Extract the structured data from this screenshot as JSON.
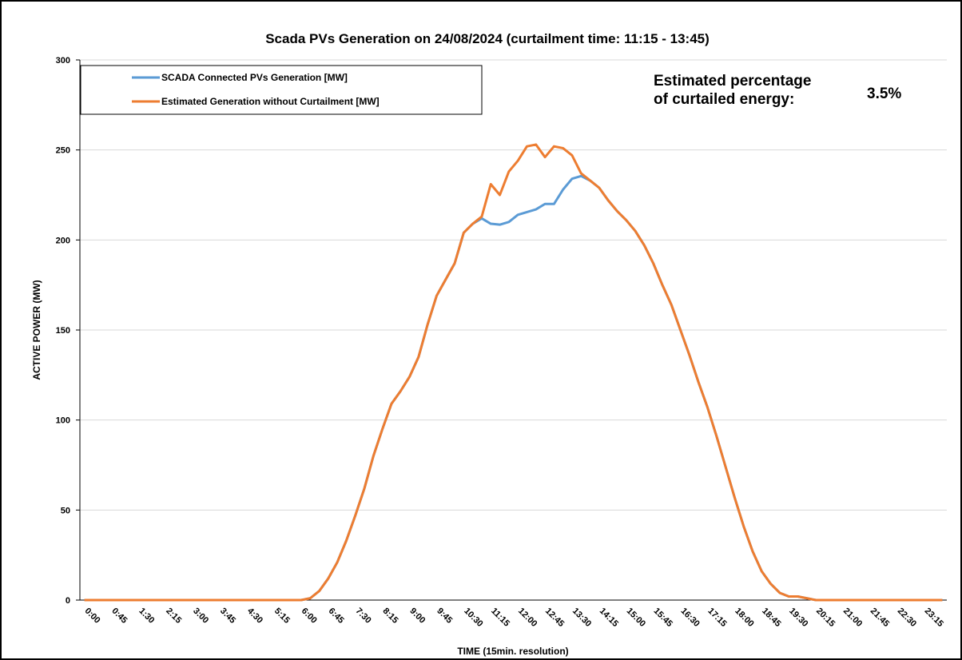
{
  "chart_data": {
    "type": "line",
    "title": "Scada PVs Generation on 24/08/2024 (curtailment time: 11:15 - 13:45)",
    "xlabel": "TIME (15min. resolution)",
    "ylabel": "ACTIVE POWER (MW)",
    "annotation": {
      "text": [
        "Estimated percentage",
        "of curtailed energy:"
      ],
      "value": "3.5%"
    },
    "categories": [
      "0:00",
      null,
      null,
      "0:45",
      null,
      null,
      "1:30",
      null,
      null,
      "2:15",
      null,
      null,
      "3:00",
      null,
      null,
      "3:45",
      null,
      null,
      "4:30",
      null,
      null,
      "5:15",
      null,
      null,
      "6:00",
      null,
      null,
      "6:45",
      null,
      null,
      "7:30",
      null,
      null,
      "8:15",
      null,
      null,
      "9:00",
      null,
      null,
      "9:45",
      null,
      null,
      "10:30",
      null,
      null,
      "11:15",
      null,
      null,
      "12:00",
      null,
      null,
      "12:45",
      null,
      null,
      "13:30",
      null,
      null,
      "14:15",
      null,
      null,
      "15:00",
      null,
      null,
      "15:45",
      null,
      null,
      "16:30",
      null,
      null,
      "17:15",
      null,
      null,
      "18:00",
      null,
      null,
      "18:45",
      null,
      null,
      "19:30",
      null,
      null,
      "20:15",
      null,
      null,
      "21:00",
      null,
      null,
      "21:45",
      null,
      null,
      "22:30",
      null,
      null,
      "23:15",
      null,
      null
    ],
    "series": [
      {
        "name": "SCADA Connected PVs Generation [MW]",
        "color": "#5b9bd5",
        "values": [
          0,
          0,
          0,
          0,
          0,
          0,
          0,
          0,
          0,
          0,
          0,
          0,
          0,
          0,
          0,
          0,
          0,
          0,
          0,
          0,
          0,
          0,
          0,
          0,
          0,
          1,
          5,
          12,
          21,
          33,
          47,
          62,
          80,
          95,
          109,
          116,
          124,
          135,
          153,
          169,
          178,
          187,
          204,
          209,
          212,
          209,
          208.5,
          210,
          214,
          215.5,
          217,
          220,
          220,
          228,
          234,
          235.5,
          233,
          229,
          222,
          216,
          211,
          205,
          197,
          187,
          175,
          164,
          150,
          136,
          121,
          107,
          91,
          74,
          57,
          41,
          27,
          16,
          9,
          4,
          2,
          2,
          1,
          0,
          0,
          0,
          0,
          0,
          0,
          0,
          0,
          0,
          0,
          0,
          0,
          0,
          0,
          0
        ]
      },
      {
        "name": "Estimated Generation without Curtailment [MW]",
        "color": "#ed7d31",
        "values": [
          0,
          0,
          0,
          0,
          0,
          0,
          0,
          0,
          0,
          0,
          0,
          0,
          0,
          0,
          0,
          0,
          0,
          0,
          0,
          0,
          0,
          0,
          0,
          0,
          0,
          1,
          5,
          12,
          21,
          33,
          47,
          62,
          80,
          95,
          109,
          116,
          124,
          135,
          153,
          169,
          178,
          187,
          204,
          209,
          213,
          231,
          225,
          238,
          244,
          252,
          253,
          246,
          252,
          251,
          247,
          237,
          233,
          229,
          222,
          216,
          211,
          205,
          197,
          187,
          175,
          164,
          150,
          136,
          121,
          107,
          91,
          74,
          57,
          41,
          27,
          16,
          9,
          4,
          2,
          2,
          1,
          0,
          0,
          0,
          0,
          0,
          0,
          0,
          0,
          0,
          0,
          0,
          0,
          0,
          0,
          0
        ]
      }
    ],
    "ylim": [
      0,
      300
    ],
    "yticks": [
      0,
      50,
      100,
      150,
      200,
      250,
      300
    ],
    "grid": true
  }
}
